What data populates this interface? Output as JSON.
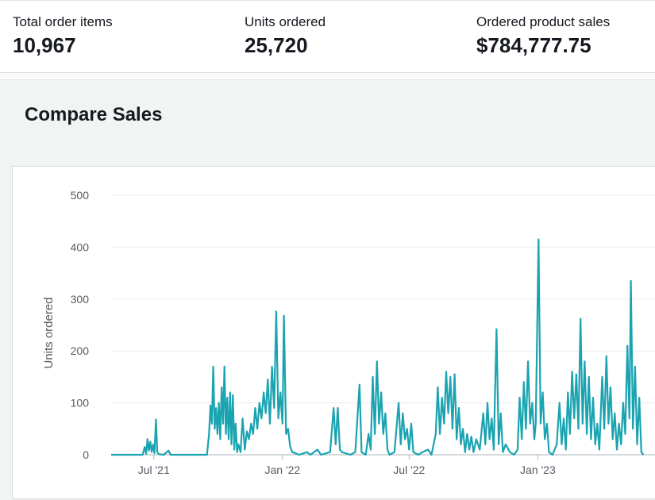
{
  "metrics": [
    {
      "label": "Total order items",
      "value": "10,967"
    },
    {
      "label": "Units ordered",
      "value": "25,720"
    },
    {
      "label": "Ordered product sales",
      "value": "$784,777.75"
    }
  ],
  "section": {
    "title": "Compare Sales"
  },
  "colors": {
    "series": "#1aa3b0",
    "grid": "#e9ebed",
    "text": "#545b64"
  },
  "chart_data": {
    "type": "line",
    "ylabel": "Units ordered",
    "ylim": [
      0,
      500
    ],
    "yticks": [
      0,
      100,
      200,
      300,
      400,
      500
    ],
    "grid": true,
    "x_start": "2021-05-01",
    "x_end": "2023-06-30",
    "xticks": [
      {
        "date": "2021-07-01",
        "label": "Jul '21"
      },
      {
        "date": "2022-01-01",
        "label": "Jan '22"
      },
      {
        "date": "2022-07-01",
        "label": "Jul '22"
      },
      {
        "date": "2023-01-01",
        "label": "Jan '23"
      }
    ],
    "series": [
      {
        "points": [
          [
            "2021-05-01",
            0
          ],
          [
            "2021-06-15",
            0
          ],
          [
            "2021-06-18",
            15
          ],
          [
            "2021-06-20",
            2
          ],
          [
            "2021-06-22",
            30
          ],
          [
            "2021-06-24",
            8
          ],
          [
            "2021-06-26",
            25
          ],
          [
            "2021-06-28",
            5
          ],
          [
            "2021-06-30",
            20
          ],
          [
            "2021-07-02",
            3
          ],
          [
            "2021-07-04",
            68
          ],
          [
            "2021-07-06",
            5
          ],
          [
            "2021-07-08",
            1
          ],
          [
            "2021-07-15",
            0
          ],
          [
            "2021-07-22",
            8
          ],
          [
            "2021-07-25",
            0
          ],
          [
            "2021-09-15",
            0
          ],
          [
            "2021-09-18",
            40
          ],
          [
            "2021-09-20",
            95
          ],
          [
            "2021-09-22",
            60
          ],
          [
            "2021-09-24",
            170
          ],
          [
            "2021-09-26",
            50
          ],
          [
            "2021-09-28",
            90
          ],
          [
            "2021-09-30",
            40
          ],
          [
            "2021-10-02",
            100
          ],
          [
            "2021-10-04",
            30
          ],
          [
            "2021-10-06",
            130
          ],
          [
            "2021-10-08",
            60
          ],
          [
            "2021-10-10",
            170
          ],
          [
            "2021-10-12",
            40
          ],
          [
            "2021-10-14",
            110
          ],
          [
            "2021-10-16",
            30
          ],
          [
            "2021-10-18",
            120
          ],
          [
            "2021-10-20",
            20
          ],
          [
            "2021-10-22",
            115
          ],
          [
            "2021-10-24",
            10
          ],
          [
            "2021-10-26",
            60
          ],
          [
            "2021-10-28",
            5
          ],
          [
            "2021-10-30",
            20
          ],
          [
            "2021-11-02",
            5
          ],
          [
            "2021-11-05",
            70
          ],
          [
            "2021-11-08",
            10
          ],
          [
            "2021-11-11",
            45
          ],
          [
            "2021-11-14",
            30
          ],
          [
            "2021-11-17",
            60
          ],
          [
            "2021-11-20",
            40
          ],
          [
            "2021-11-23",
            90
          ],
          [
            "2021-11-26",
            50
          ],
          [
            "2021-11-29",
            100
          ],
          [
            "2021-12-02",
            70
          ],
          [
            "2021-12-05",
            120
          ],
          [
            "2021-12-08",
            80
          ],
          [
            "2021-12-11",
            145
          ],
          [
            "2021-12-14",
            60
          ],
          [
            "2021-12-17",
            170
          ],
          [
            "2021-12-20",
            90
          ],
          [
            "2021-12-23",
            276
          ],
          [
            "2021-12-26",
            70
          ],
          [
            "2021-12-29",
            120
          ],
          [
            "2022-01-01",
            60
          ],
          [
            "2022-01-03",
            268
          ],
          [
            "2022-01-06",
            40
          ],
          [
            "2022-01-09",
            50
          ],
          [
            "2022-01-12",
            15
          ],
          [
            "2022-01-15",
            5
          ],
          [
            "2022-01-25",
            0
          ],
          [
            "2022-02-05",
            5
          ],
          [
            "2022-02-10",
            0
          ],
          [
            "2022-02-20",
            10
          ],
          [
            "2022-02-25",
            0
          ],
          [
            "2022-03-10",
            5
          ],
          [
            "2022-03-15",
            90
          ],
          [
            "2022-03-18",
            20
          ],
          [
            "2022-03-21",
            90
          ],
          [
            "2022-03-24",
            10
          ],
          [
            "2022-03-27",
            5
          ],
          [
            "2022-04-08",
            0
          ],
          [
            "2022-04-15",
            5
          ],
          [
            "2022-04-21",
            135
          ],
          [
            "2022-04-24",
            5
          ],
          [
            "2022-04-30",
            0
          ],
          [
            "2022-05-04",
            40
          ],
          [
            "2022-05-07",
            10
          ],
          [
            "2022-05-10",
            150
          ],
          [
            "2022-05-13",
            40
          ],
          [
            "2022-05-16",
            180
          ],
          [
            "2022-05-19",
            60
          ],
          [
            "2022-05-22",
            120
          ],
          [
            "2022-05-25",
            40
          ],
          [
            "2022-05-28",
            80
          ],
          [
            "2022-05-31",
            10
          ],
          [
            "2022-06-03",
            0
          ],
          [
            "2022-06-10",
            5
          ],
          [
            "2022-06-16",
            100
          ],
          [
            "2022-06-19",
            20
          ],
          [
            "2022-06-22",
            80
          ],
          [
            "2022-06-25",
            30
          ],
          [
            "2022-06-28",
            50
          ],
          [
            "2022-07-01",
            10
          ],
          [
            "2022-07-04",
            60
          ],
          [
            "2022-07-07",
            5
          ],
          [
            "2022-07-14",
            0
          ],
          [
            "2022-07-20",
            5
          ],
          [
            "2022-07-28",
            10
          ],
          [
            "2022-08-02",
            0
          ],
          [
            "2022-08-08",
            40
          ],
          [
            "2022-08-11",
            130
          ],
          [
            "2022-08-14",
            40
          ],
          [
            "2022-08-17",
            110
          ],
          [
            "2022-08-20",
            60
          ],
          [
            "2022-08-23",
            160
          ],
          [
            "2022-08-26",
            80
          ],
          [
            "2022-08-29",
            150
          ],
          [
            "2022-09-01",
            50
          ],
          [
            "2022-09-04",
            155
          ],
          [
            "2022-09-07",
            30
          ],
          [
            "2022-09-10",
            90
          ],
          [
            "2022-09-13",
            20
          ],
          [
            "2022-09-16",
            50
          ],
          [
            "2022-09-19",
            5
          ],
          [
            "2022-09-22",
            40
          ],
          [
            "2022-09-25",
            10
          ],
          [
            "2022-09-28",
            35
          ],
          [
            "2022-10-01",
            5
          ],
          [
            "2022-10-05",
            30
          ],
          [
            "2022-10-10",
            10
          ],
          [
            "2022-10-15",
            80
          ],
          [
            "2022-10-18",
            20
          ],
          [
            "2022-10-21",
            100
          ],
          [
            "2022-10-24",
            30
          ],
          [
            "2022-10-27",
            70
          ],
          [
            "2022-10-30",
            10
          ],
          [
            "2022-11-03",
            242
          ],
          [
            "2022-11-06",
            20
          ],
          [
            "2022-11-09",
            80
          ],
          [
            "2022-11-12",
            5
          ],
          [
            "2022-11-16",
            20
          ],
          [
            "2022-11-22",
            5
          ],
          [
            "2022-11-28",
            0
          ],
          [
            "2022-12-03",
            10
          ],
          [
            "2022-12-06",
            110
          ],
          [
            "2022-12-09",
            30
          ],
          [
            "2022-12-12",
            140
          ],
          [
            "2022-12-15",
            50
          ],
          [
            "2022-12-18",
            180
          ],
          [
            "2022-12-21",
            60
          ],
          [
            "2022-12-24",
            100
          ],
          [
            "2022-12-27",
            30
          ],
          [
            "2022-12-29",
            60
          ],
          [
            "2023-01-02",
            415
          ],
          [
            "2023-01-05",
            60
          ],
          [
            "2023-01-08",
            120
          ],
          [
            "2023-01-11",
            30
          ],
          [
            "2023-01-14",
            60
          ],
          [
            "2023-01-17",
            5
          ],
          [
            "2023-01-22",
            0
          ],
          [
            "2023-01-28",
            20
          ],
          [
            "2023-02-01",
            100
          ],
          [
            "2023-02-04",
            20
          ],
          [
            "2023-02-07",
            70
          ],
          [
            "2023-02-10",
            10
          ],
          [
            "2023-02-13",
            120
          ],
          [
            "2023-02-16",
            40
          ],
          [
            "2023-02-19",
            160
          ],
          [
            "2023-02-22",
            70
          ],
          [
            "2023-02-25",
            155
          ],
          [
            "2023-02-28",
            50
          ],
          [
            "2023-03-03",
            262
          ],
          [
            "2023-03-06",
            60
          ],
          [
            "2023-03-09",
            180
          ],
          [
            "2023-03-12",
            40
          ],
          [
            "2023-03-15",
            150
          ],
          [
            "2023-03-18",
            30
          ],
          [
            "2023-03-21",
            110
          ],
          [
            "2023-03-24",
            20
          ],
          [
            "2023-03-27",
            60
          ],
          [
            "2023-03-30",
            10
          ],
          [
            "2023-04-03",
            150
          ],
          [
            "2023-04-06",
            50
          ],
          [
            "2023-04-09",
            190
          ],
          [
            "2023-04-12",
            60
          ],
          [
            "2023-04-15",
            130
          ],
          [
            "2023-04-18",
            30
          ],
          [
            "2023-04-21",
            80
          ],
          [
            "2023-04-24",
            10
          ],
          [
            "2023-04-27",
            60
          ],
          [
            "2023-04-30",
            20
          ],
          [
            "2023-05-03",
            100
          ],
          [
            "2023-05-06",
            40
          ],
          [
            "2023-05-09",
            210
          ],
          [
            "2023-05-12",
            70
          ],
          [
            "2023-05-14",
            335
          ],
          [
            "2023-05-17",
            50
          ],
          [
            "2023-05-20",
            170
          ],
          [
            "2023-05-23",
            20
          ],
          [
            "2023-05-26",
            110
          ],
          [
            "2023-05-29",
            5
          ],
          [
            "2023-06-01",
            0
          ]
        ]
      }
    ]
  }
}
